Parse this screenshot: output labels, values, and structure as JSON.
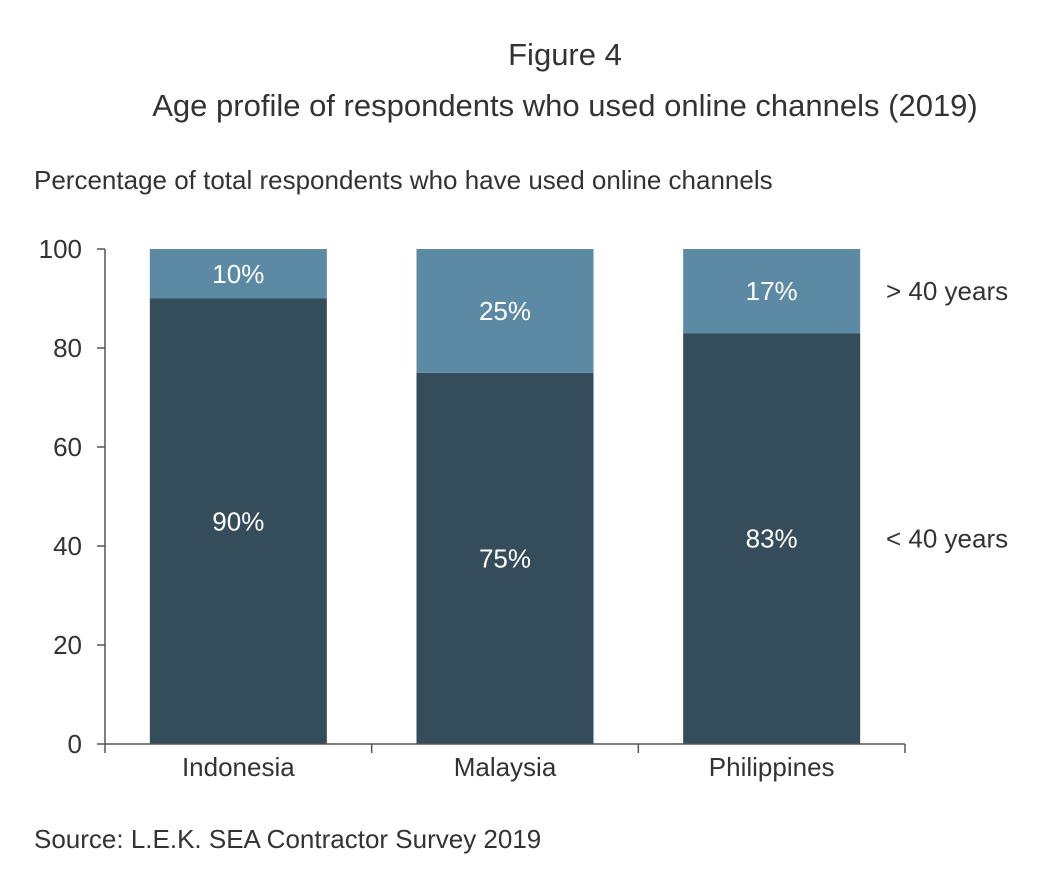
{
  "figure_label": "Figure 4",
  "title": "Age profile of respondents who used online channels (2019)",
  "ylabel": "Percentage of total respondents who have used online channels",
  "source": "Source: L.E.K. SEA Contractor Survey 2019",
  "colors": {
    "under40": "#354c5a",
    "over40": "#5c8aa4",
    "axis": "#555555",
    "text": "#333333"
  },
  "chart_data": {
    "type": "bar",
    "stacked": true,
    "categories": [
      "Indonesia",
      "Malaysia",
      "Philippines"
    ],
    "series": [
      {
        "name": "< 40 years",
        "values": [
          90,
          75,
          83
        ],
        "labels": [
          "90%",
          "75%",
          "83%"
        ]
      },
      {
        "name": "> 40 years",
        "values": [
          10,
          25,
          17
        ],
        "labels": [
          "10%",
          "25%",
          "17%"
        ]
      }
    ],
    "ylim": [
      0,
      100
    ],
    "yticks": [
      0,
      20,
      40,
      60,
      80,
      100
    ],
    "grid": false,
    "legend": "right"
  }
}
